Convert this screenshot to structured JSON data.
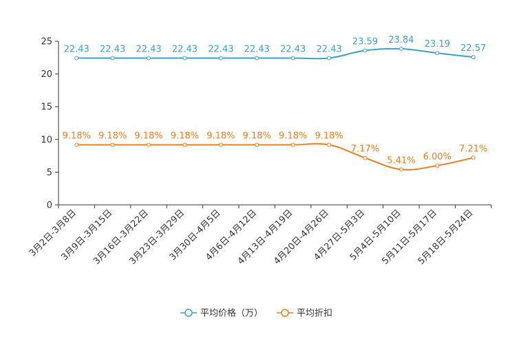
{
  "chart_data": {
    "type": "line",
    "categories": [
      "3月2日-3月8日",
      "3月9日-3月15日",
      "3月16日-3月22日",
      "3月23日-3月29日",
      "3月30日-4月5日",
      "4月6日-4月12日",
      "4月13日-4月19日",
      "4月20日-4月26日",
      "4月27日-5月3日",
      "5月4日-5月10日",
      "5月11日-5月17日",
      "5月18日-5月24日"
    ],
    "ylim": [
      0,
      25
    ],
    "yticks": [
      0,
      5,
      10,
      15,
      20,
      25
    ],
    "series": [
      {
        "name": "平均价格（万）",
        "color": "#3a9fd1",
        "values": [
          22.43,
          22.43,
          22.43,
          22.43,
          22.43,
          22.43,
          22.43,
          22.43,
          23.59,
          23.84,
          23.19,
          22.57
        ],
        "labels": [
          "22.43",
          "22.43",
          "22.43",
          "22.43",
          "22.43",
          "22.43",
          "22.43",
          "22.43",
          "23.59",
          "23.84",
          "23.19",
          "22.57"
        ]
      },
      {
        "name": "平均折扣",
        "color": "#f07c1b",
        "values": [
          9.18,
          9.18,
          9.18,
          9.18,
          9.18,
          9.18,
          9.18,
          9.18,
          7.17,
          5.41,
          6.0,
          7.21
        ],
        "labels": [
          "9.18%",
          "9.18%",
          "9.18%",
          "9.18%",
          "9.18%",
          "9.18%",
          "9.18%",
          "9.18%",
          "7.17%",
          "5.41%",
          "6.00%",
          "7.21%"
        ]
      }
    ],
    "legend_position": "bottom-center"
  }
}
